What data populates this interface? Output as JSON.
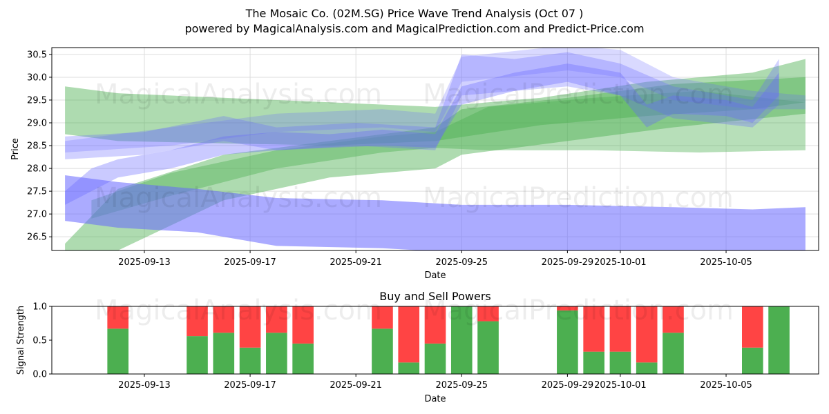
{
  "title_line1": "The Mosaic Co. (02M.SG) Price Wave Trend Analysis (Oct 07 )",
  "title_line2": "powered by MagicalAnalysis.com and MagicalPrediction.com and Predict-Price.com",
  "watermarks": [
    "MagicalAnalysis.com",
    "MagicalPrediction.com"
  ],
  "colors": {
    "green_band": "#4caf50",
    "blue_band": "#6666ff",
    "buy": "#4caf50",
    "sell": "#ff4444"
  },
  "chart_data": [
    {
      "type": "area",
      "title": "",
      "xlabel": "Date",
      "ylabel": "Price",
      "xlim": [
        "2025-09-09T12:00",
        "2025-10-08T12:00"
      ],
      "ylim": [
        26.2,
        30.65
      ],
      "y_ticks": [
        "26.5",
        "27.0",
        "27.5",
        "28.0",
        "28.5",
        "29.0",
        "29.5",
        "30.0",
        "30.5"
      ],
      "x_ticks": [
        "2025-09-13",
        "2025-09-17",
        "2025-09-21",
        "2025-09-25",
        "2025-09-29",
        "2025-10-01",
        "2025-10-05"
      ],
      "grid": true,
      "series": [
        {
          "name": "green-upper-band",
          "color": "green",
          "opacity": 0.45,
          "x": [
            "2025-09-10",
            "2025-09-12",
            "2025-09-16",
            "2025-09-20",
            "2025-09-24",
            "2025-09-28",
            "2025-10-02",
            "2025-10-06",
            "2025-10-08"
          ],
          "upper": [
            29.8,
            29.65,
            29.55,
            29.45,
            29.35,
            29.55,
            29.9,
            30.1,
            30.4
          ],
          "lower": [
            28.75,
            28.6,
            28.55,
            28.5,
            28.6,
            28.95,
            29.15,
            29.3,
            29.45
          ]
        },
        {
          "name": "green-middle-band",
          "color": "green",
          "opacity": 0.45,
          "x": [
            "2025-09-10",
            "2025-09-12",
            "2025-09-16",
            "2025-09-20",
            "2025-09-24",
            "2025-09-25",
            "2025-09-29",
            "2025-10-03",
            "2025-10-08"
          ],
          "upper": [
            26.35,
            27.55,
            28.3,
            28.6,
            28.9,
            29.3,
            29.55,
            29.85,
            30.0
          ],
          "lower": [
            26.2,
            26.2,
            27.3,
            27.8,
            28.0,
            28.3,
            28.6,
            28.9,
            29.2
          ]
        },
        {
          "name": "green-wide-band",
          "color": "green",
          "opacity": 0.4,
          "x": [
            "2025-09-11",
            "2025-09-14",
            "2025-09-18",
            "2025-09-22",
            "2025-09-24",
            "2025-09-26",
            "2025-09-30",
            "2025-10-04",
            "2025-10-08"
          ],
          "upper": [
            27.3,
            27.9,
            28.4,
            28.7,
            28.8,
            29.35,
            29.55,
            29.7,
            29.45
          ],
          "lower": [
            26.9,
            27.4,
            28.0,
            28.35,
            28.45,
            28.4,
            28.4,
            28.35,
            28.4
          ]
        },
        {
          "name": "blue-lower-band",
          "color": "blue",
          "opacity": 0.55,
          "x": [
            "2025-09-10",
            "2025-09-12",
            "2025-09-15",
            "2025-09-18",
            "2025-09-22",
            "2025-09-25",
            "2025-09-29",
            "2025-10-03",
            "2025-10-06",
            "2025-10-08"
          ],
          "upper": [
            27.85,
            27.7,
            27.55,
            27.35,
            27.3,
            27.2,
            27.2,
            27.15,
            27.1,
            27.15
          ],
          "lower": [
            26.85,
            26.7,
            26.6,
            26.3,
            26.25,
            26.15,
            26.15,
            26.15,
            26.15,
            26.15
          ]
        },
        {
          "name": "blue-wave-1",
          "color": "blue",
          "opacity": 0.35,
          "x": [
            "2025-09-10",
            "2025-09-11",
            "2025-09-12",
            "2025-09-14",
            "2025-09-16",
            "2025-09-18",
            "2025-09-20",
            "2025-09-22",
            "2025-09-24",
            "2025-09-25",
            "2025-09-27",
            "2025-09-29",
            "2025-10-01",
            "2025-10-02",
            "2025-10-03",
            "2025-10-05",
            "2025-10-06",
            "2025-10-07"
          ],
          "upper": [
            27.5,
            28.0,
            28.2,
            28.4,
            28.7,
            28.8,
            28.75,
            28.85,
            28.75,
            29.8,
            30.1,
            30.3,
            30.1,
            29.4,
            29.6,
            29.5,
            29.35,
            30.1
          ],
          "lower": [
            27.2,
            27.5,
            27.8,
            28.0,
            28.3,
            28.4,
            28.45,
            28.5,
            28.45,
            29.4,
            29.7,
            29.9,
            29.6,
            28.9,
            29.2,
            29.15,
            29.0,
            29.6
          ]
        },
        {
          "name": "blue-wave-2",
          "color": "blue",
          "opacity": 0.3,
          "x": [
            "2025-09-10",
            "2025-09-13",
            "2025-09-16",
            "2025-09-18",
            "2025-09-21",
            "2025-09-24",
            "2025-09-25",
            "2025-09-27",
            "2025-09-29",
            "2025-10-01",
            "2025-10-03",
            "2025-10-06",
            "2025-10-07"
          ],
          "upper": [
            28.7,
            28.8,
            29.15,
            28.9,
            29.0,
            28.9,
            30.5,
            30.4,
            30.55,
            30.3,
            29.8,
            29.5,
            30.4
          ],
          "lower": [
            28.2,
            28.3,
            28.6,
            28.4,
            28.5,
            28.4,
            29.6,
            29.7,
            29.8,
            29.6,
            29.1,
            28.9,
            29.4
          ]
        },
        {
          "name": "blue-upper-band",
          "color": "blue",
          "opacity": 0.25,
          "x": [
            "2025-09-10",
            "2025-09-14",
            "2025-09-18",
            "2025-09-22",
            "2025-09-24",
            "2025-09-25",
            "2025-09-29",
            "2025-10-01",
            "2025-10-03",
            "2025-10-06",
            "2025-10-08"
          ],
          "upper": [
            28.6,
            28.9,
            29.2,
            29.3,
            29.2,
            30.45,
            30.7,
            30.6,
            30.0,
            29.7,
            29.6
          ],
          "lower": [
            28.35,
            28.5,
            28.8,
            28.9,
            28.8,
            29.9,
            30.15,
            30.0,
            29.5,
            29.3,
            29.3
          ]
        }
      ]
    },
    {
      "type": "bar",
      "title": "Buy and Sell Powers",
      "xlabel": "Date",
      "ylabel": "Signal Strength",
      "ylim": [
        0,
        1
      ],
      "y_ticks": [
        "0.0",
        "0.5",
        "1.0"
      ],
      "x_ticks": [
        "2025-09-13",
        "2025-09-17",
        "2025-09-21",
        "2025-09-25",
        "2025-09-29",
        "2025-10-01",
        "2025-10-05"
      ],
      "categories": [
        "2025-09-12",
        "2025-09-15",
        "2025-09-16",
        "2025-09-17",
        "2025-09-18",
        "2025-09-19",
        "2025-09-22",
        "2025-09-23",
        "2025-09-24",
        "2025-09-25",
        "2025-09-26",
        "2025-09-29",
        "2025-09-30",
        "2025-10-01",
        "2025-10-02",
        "2025-10-03",
        "2025-10-06",
        "2025-10-07"
      ],
      "series": [
        {
          "name": "Buy",
          "values": [
            0.67,
            0.56,
            0.61,
            0.39,
            0.61,
            0.45,
            0.67,
            0.17,
            0.45,
            1.0,
            0.78,
            0.94,
            0.33,
            0.33,
            0.17,
            0.61,
            0.39,
            1.0
          ]
        },
        {
          "name": "Sell",
          "values": [
            0.33,
            0.44,
            0.39,
            0.61,
            0.39,
            0.55,
            0.33,
            0.83,
            0.55,
            0.0,
            0.22,
            0.06,
            0.67,
            0.67,
            0.83,
            0.39,
            0.61,
            0.0
          ]
        }
      ]
    }
  ]
}
